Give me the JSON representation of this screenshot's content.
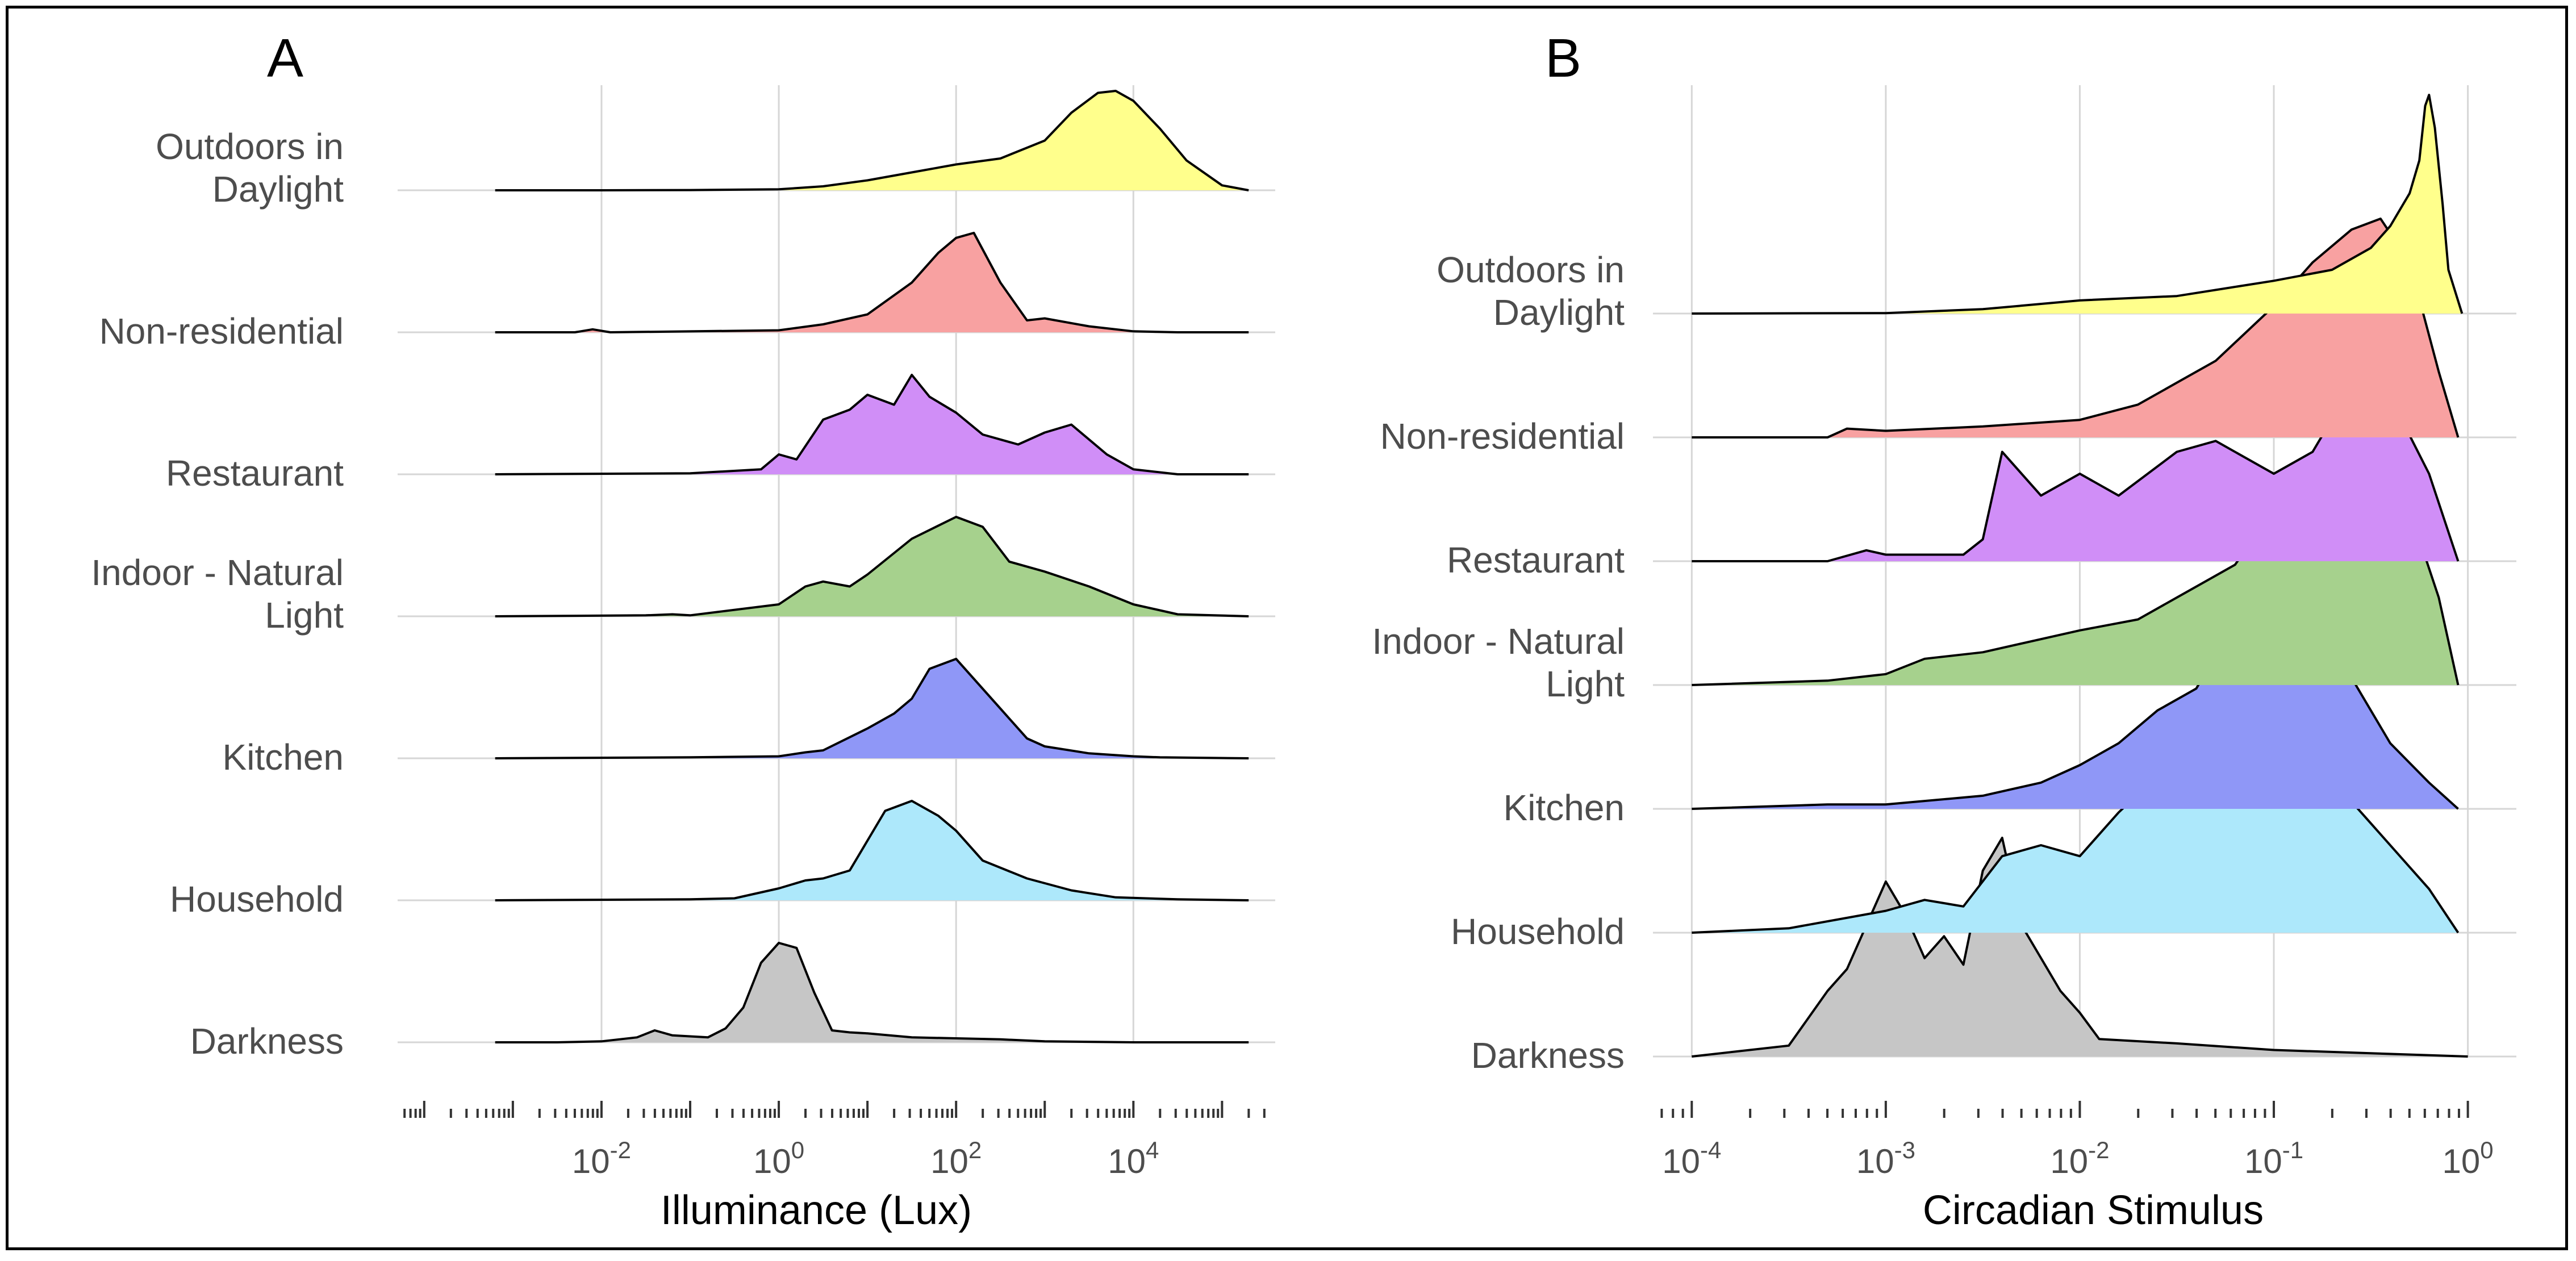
{
  "chart_data": [
    {
      "panel": "A",
      "type": "ridgeline-density",
      "xlabel": "Illuminance (Lux)",
      "x_scale": "log10",
      "xlim_log10": [
        -4.3,
        5.6
      ],
      "x_ticks": [
        {
          "base": "10",
          "exp": "-2",
          "log10": -2
        },
        {
          "base": "10",
          "exp": "0",
          "log10": 0
        },
        {
          "base": "10",
          "exp": "2",
          "log10": 2
        },
        {
          "base": "10",
          "exp": "4",
          "log10": 4
        }
      ],
      "grid": true,
      "series": [
        {
          "name": "Outdoors in Daylight",
          "label_lines": [
            "Outdoors in",
            "Daylight"
          ],
          "color": "#FFFF8C",
          "x": [
            -3.2,
            -2,
            -1,
            0,
            0.5,
            1,
            1.5,
            2,
            2.5,
            3,
            3.3,
            3.6,
            3.8,
            4,
            4.3,
            4.6,
            5,
            5.3
          ],
          "y": [
            0,
            0,
            0.002,
            0.01,
            0.04,
            0.1,
            0.18,
            0.26,
            0.32,
            0.5,
            0.78,
            0.98,
            1,
            0.9,
            0.62,
            0.3,
            0.05,
            0
          ]
        },
        {
          "name": "Non-residential",
          "label_lines": [
            "Non-residential"
          ],
          "color": "#F8A1A1",
          "x": [
            -3.2,
            -2.3,
            -2.1,
            -1.9,
            0,
            0.5,
            1,
            1.5,
            1.8,
            2,
            2.2,
            2.5,
            2.8,
            3,
            3.5,
            4,
            4.5,
            5.3
          ],
          "y": [
            0,
            0,
            0.03,
            0,
            0.02,
            0.08,
            0.18,
            0.5,
            0.8,
            0.95,
            1,
            0.5,
            0.12,
            0.14,
            0.06,
            0.01,
            0,
            0
          ]
        },
        {
          "name": "Restaurant",
          "label_lines": [
            "Restaurant"
          ],
          "color": "#D08EF7",
          "x": [
            -3.2,
            -1,
            -0.2,
            0,
            0.2,
            0.5,
            0.8,
            1,
            1.3,
            1.5,
            1.7,
            2,
            2.3,
            2.7,
            3,
            3.3,
            3.7,
            4,
            4.5,
            5.3
          ],
          "y": [
            0,
            0.01,
            0.05,
            0.2,
            0.15,
            0.55,
            0.65,
            0.8,
            0.7,
            1,
            0.78,
            0.62,
            0.4,
            0.3,
            0.42,
            0.5,
            0.2,
            0.05,
            0,
            0
          ]
        },
        {
          "name": "Indoor - Natural Light",
          "label_lines": [
            "Indoor - Natural",
            "Light"
          ],
          "color": "#A6D18D",
          "x": [
            -3.2,
            -1.5,
            -1.2,
            -1,
            0,
            0.3,
            0.5,
            0.8,
            1,
            1.5,
            2,
            2.3,
            2.6,
            3,
            3.5,
            4,
            4.5,
            5.3
          ],
          "y": [
            0,
            0.01,
            0.02,
            0.01,
            0.12,
            0.3,
            0.35,
            0.3,
            0.42,
            0.78,
            1,
            0.9,
            0.55,
            0.45,
            0.3,
            0.12,
            0.02,
            0
          ]
        },
        {
          "name": "Kitchen",
          "label_lines": [
            "Kitchen"
          ],
          "color": "#8F97F7",
          "x": [
            -3.2,
            -1,
            0,
            0.3,
            0.5,
            1,
            1.3,
            1.5,
            1.7,
            2,
            2.2,
            2.5,
            2.8,
            3,
            3.5,
            4,
            4.3,
            5.3
          ],
          "y": [
            0,
            0.01,
            0.02,
            0.06,
            0.08,
            0.3,
            0.45,
            0.6,
            0.9,
            1,
            0.8,
            0.5,
            0.2,
            0.12,
            0.05,
            0.02,
            0.01,
            0
          ]
        },
        {
          "name": "Household",
          "label_lines": [
            "Household"
          ],
          "color": "#ADE8FB",
          "x": [
            -3.2,
            -1,
            -0.5,
            0,
            0.3,
            0.5,
            0.8,
            1,
            1.2,
            1.5,
            1.8,
            2,
            2.3,
            2.8,
            3.3,
            3.8,
            4.5,
            5.3
          ],
          "y": [
            0,
            0.01,
            0.02,
            0.12,
            0.2,
            0.22,
            0.3,
            0.6,
            0.9,
            1,
            0.85,
            0.7,
            0.4,
            0.22,
            0.1,
            0.03,
            0.01,
            0
          ]
        },
        {
          "name": "Darkness",
          "label_lines": [
            "Darkness"
          ],
          "color": "#C6C6C6",
          "x": [
            -3.2,
            -2.5,
            -2,
            -1.6,
            -1.4,
            -1.2,
            -1,
            -0.8,
            -0.6,
            -0.4,
            -0.2,
            0,
            0.2,
            0.4,
            0.6,
            0.8,
            1,
            1.5,
            2,
            2.5,
            3,
            4,
            5.3
          ],
          "y": [
            0,
            0,
            0.01,
            0.05,
            0.12,
            0.07,
            0.06,
            0.05,
            0.14,
            0.35,
            0.8,
            1,
            0.95,
            0.5,
            0.12,
            0.1,
            0.09,
            0.05,
            0.04,
            0.03,
            0.01,
            0,
            0
          ]
        }
      ]
    },
    {
      "panel": "B",
      "type": "ridgeline-density",
      "xlabel": "Circadian Stimulus",
      "x_scale": "log10",
      "xlim_log10": [
        -4.2,
        0.25
      ],
      "x_ticks": [
        {
          "base": "10",
          "exp": "-4",
          "log10": -4
        },
        {
          "base": "10",
          "exp": "-3",
          "log10": -3
        },
        {
          "base": "10",
          "exp": "-2",
          "log10": -2
        },
        {
          "base": "10",
          "exp": "-1",
          "log10": -1
        },
        {
          "base": "10",
          "exp": "0",
          "log10": 0
        }
      ],
      "grid": true,
      "series": [
        {
          "name": "Outdoors in Daylight",
          "label_lines": [
            "Outdoors in",
            "Daylight"
          ],
          "color": "#FFFF8C",
          "x": [
            -4,
            -3,
            -2.5,
            -2,
            -1.5,
            -1,
            -0.7,
            -0.5,
            -0.4,
            -0.3,
            -0.25,
            -0.22,
            -0.2,
            -0.17,
            -0.13,
            -0.1,
            -0.03
          ],
          "y": [
            0,
            0.002,
            0.02,
            0.06,
            0.08,
            0.15,
            0.2,
            0.3,
            0.4,
            0.55,
            0.7,
            0.95,
            1,
            0.85,
            0.5,
            0.2,
            0
          ]
        },
        {
          "name": "Non-residential",
          "label_lines": [
            "Non-residential"
          ],
          "color": "#F8A1A1",
          "x": [
            -4,
            -3.3,
            -3.2,
            -3,
            -2.5,
            -2,
            -1.7,
            -1.5,
            -1.3,
            -1,
            -0.8,
            -0.6,
            -0.45,
            -0.3,
            -0.15,
            -0.05
          ],
          "y": [
            0,
            0,
            0.04,
            0.03,
            0.05,
            0.08,
            0.15,
            0.25,
            0.35,
            0.6,
            0.8,
            0.95,
            1,
            0.8,
            0.3,
            0
          ]
        },
        {
          "name": "Restaurant",
          "label_lines": [
            "Restaurant"
          ],
          "color": "#D08EF7",
          "x": [
            -4,
            -3.3,
            -3.1,
            -3,
            -2.6,
            -2.5,
            -2.4,
            -2.2,
            -2,
            -1.8,
            -1.5,
            -1.3,
            -1,
            -0.8,
            -0.6,
            -0.4,
            -0.2,
            -0.05
          ],
          "y": [
            0,
            0,
            0.05,
            0.03,
            0.03,
            0.1,
            0.5,
            0.3,
            0.4,
            0.3,
            0.5,
            0.55,
            0.4,
            0.5,
            0.8,
            0.75,
            0.4,
            0
          ]
        },
        {
          "name": "Indoor - Natural Light",
          "label_lines": [
            "Indoor - Natural",
            "Light"
          ],
          "color": "#A6D18D",
          "x": [
            -4,
            -3.3,
            -3,
            -2.8,
            -2.5,
            -2,
            -1.7,
            -1.5,
            -1.2,
            -1,
            -0.8,
            -0.5,
            -0.3,
            -0.15,
            -0.05
          ],
          "y": [
            0,
            0.02,
            0.05,
            0.12,
            0.15,
            0.25,
            0.3,
            0.4,
            0.55,
            0.8,
            1,
            1,
            0.8,
            0.4,
            0
          ]
        },
        {
          "name": "Kitchen",
          "label_lines": [
            "Kitchen"
          ],
          "color": "#8F97F7",
          "x": [
            -4,
            -3.3,
            -3,
            -2.5,
            -2.2,
            -2,
            -1.8,
            -1.6,
            -1.4,
            -1.2,
            -1,
            -0.8,
            -0.6,
            -0.4,
            -0.2,
            -0.05
          ],
          "y": [
            0,
            0.02,
            0.02,
            0.06,
            0.12,
            0.2,
            0.3,
            0.45,
            0.55,
            0.85,
            0.95,
            0.85,
            0.6,
            0.3,
            0.12,
            0
          ]
        },
        {
          "name": "Household",
          "label_lines": [
            "Household"
          ],
          "color": "#ADE8FB",
          "x": [
            -4,
            -3.5,
            -3,
            -2.8,
            -2.6,
            -2.4,
            -2.2,
            -2,
            -1.8,
            -1.5,
            -1.2,
            -1,
            -0.8,
            -0.5,
            -0.2,
            -0.05
          ],
          "y": [
            0,
            0.02,
            0.1,
            0.15,
            0.12,
            0.35,
            0.4,
            0.35,
            0.55,
            0.8,
            0.98,
            0.95,
            0.8,
            0.5,
            0.2,
            0
          ]
        },
        {
          "name": "Darkness",
          "label_lines": [
            "Darkness"
          ],
          "color": "#C6C6C6",
          "x": [
            -4,
            -3.8,
            -3.5,
            -3.3,
            -3.2,
            -3.1,
            -3,
            -2.9,
            -2.8,
            -2.7,
            -2.6,
            -2.5,
            -2.4,
            -2.3,
            -2.1,
            -2,
            -1.9,
            -1.5,
            -1,
            0
          ],
          "y": [
            0,
            0.02,
            0.05,
            0.3,
            0.4,
            0.6,
            0.8,
            0.65,
            0.45,
            0.55,
            0.42,
            0.85,
            1,
            0.6,
            0.3,
            0.2,
            0.08,
            0.06,
            0.03,
            0
          ]
        }
      ]
    }
  ],
  "panels": [
    {
      "letter": "A",
      "xlabel": "Illuminance (Lux)"
    },
    {
      "letter": "B",
      "xlabel": "Circadian Stimulus"
    }
  ]
}
